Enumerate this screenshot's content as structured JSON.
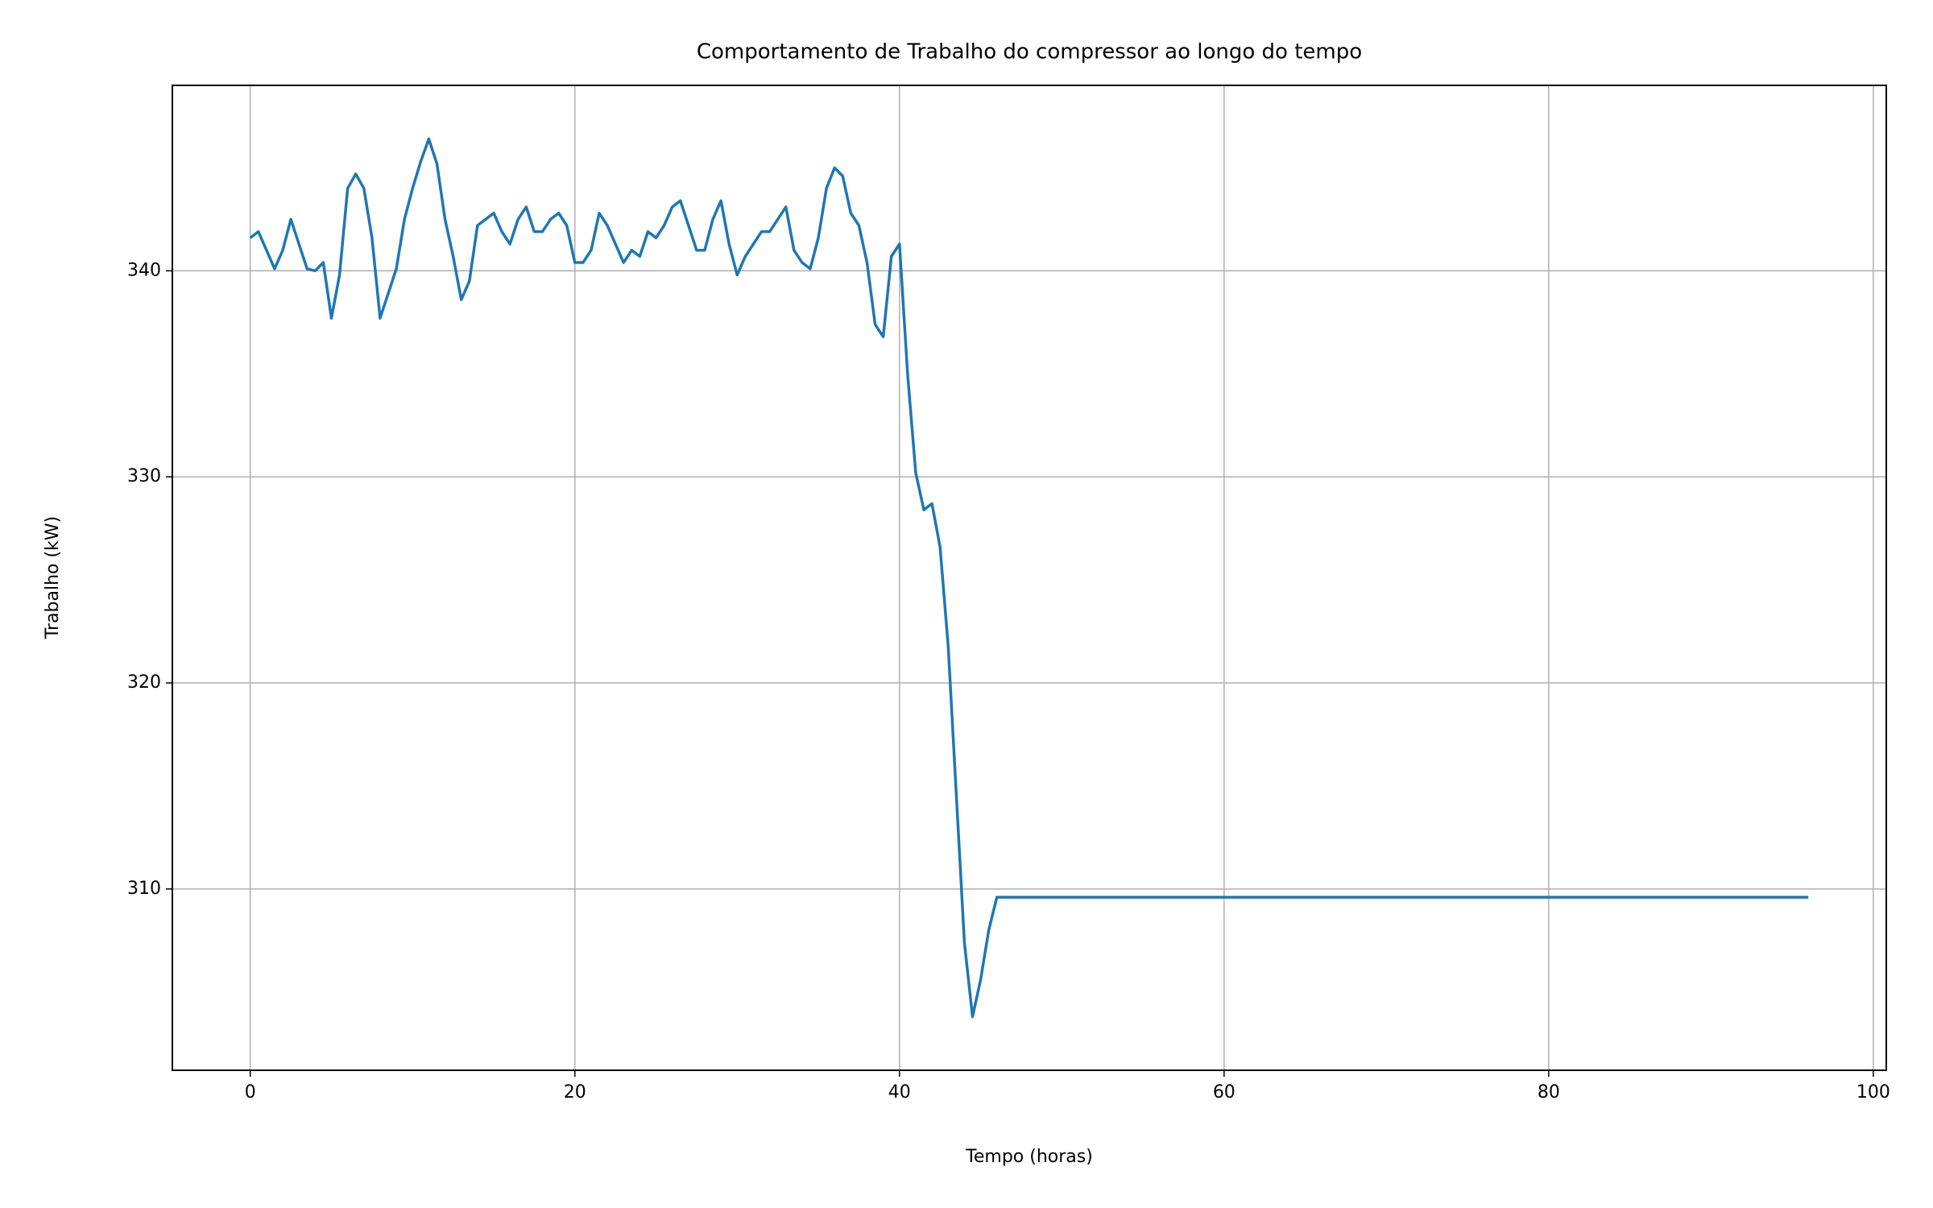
{
  "chart_data": {
    "type": "line",
    "title": "Comportamento de Trabalho do compressor ao longo do tempo",
    "x_label": "Tempo (horas)",
    "y_label": "Trabalho (kW)",
    "xlim": [
      -4.8,
      100.8
    ],
    "ylim": [
      301.2,
      349.0
    ],
    "xticks": [
      0,
      20,
      40,
      60,
      80,
      100
    ],
    "yticks": [
      310,
      320,
      330,
      340
    ],
    "grid": true,
    "x": [
      0,
      0.5,
      1,
      1.5,
      2,
      2.5,
      3,
      3.5,
      4,
      4.5,
      5,
      5.5,
      6,
      6.5,
      7,
      7.5,
      8,
      8.5,
      9,
      9.5,
      10,
      10.5,
      11,
      11.5,
      12,
      12.5,
      13,
      13.5,
      14,
      14.5,
      15,
      15.5,
      16,
      16.5,
      17,
      17.5,
      18,
      18.5,
      19,
      19.5,
      20,
      20.5,
      21,
      21.5,
      22,
      22.5,
      23,
      23.5,
      24,
      24.5,
      25,
      25.5,
      26,
      26.5,
      27,
      27.5,
      28,
      28.5,
      29,
      29.5,
      30,
      30.5,
      31,
      31.5,
      32,
      32.5,
      33,
      33.5,
      34,
      34.5,
      35,
      35.5,
      36,
      36.5,
      37,
      37.5,
      38,
      38.5,
      39,
      39.5,
      40,
      40.5,
      41,
      41.5,
      42,
      42.5,
      43,
      43.5,
      44,
      44.5,
      45,
      45.5,
      46,
      96
    ],
    "series": [
      {
        "color": "#1f77b4",
        "values": [
          341.6,
          341.9,
          341,
          340.1,
          341,
          342.5,
          341.3,
          340.1,
          340,
          340.4,
          337.7,
          339.8,
          344,
          344.7,
          344,
          341.6,
          337.7,
          338.9,
          340.1,
          342.5,
          344,
          345.3,
          346.4,
          345.2,
          342.5,
          340.7,
          338.6,
          339.5,
          342.2,
          342.5,
          342.8,
          341.9,
          341.3,
          342.5,
          343.1,
          341.9,
          341.9,
          342.5,
          342.8,
          342.2,
          340.4,
          340.4,
          341,
          342.8,
          342.2,
          341.3,
          340.4,
          341,
          340.7,
          341.9,
          341.6,
          342.2,
          343.1,
          343.4,
          342.2,
          341,
          341,
          342.5,
          343.4,
          341.3,
          339.8,
          340.7,
          341.3,
          341.9,
          341.9,
          342.5,
          343.1,
          341,
          340.4,
          340.1,
          341.6,
          344,
          345,
          344.6,
          342.8,
          342.2,
          340.4,
          337.4,
          336.8,
          340.7,
          341.3,
          335,
          330.2,
          328.4,
          328.7,
          326.6,
          321.8,
          314.6,
          307.4,
          303.8,
          305.6,
          308,
          309.6,
          309.6
        ]
      }
    ]
  }
}
